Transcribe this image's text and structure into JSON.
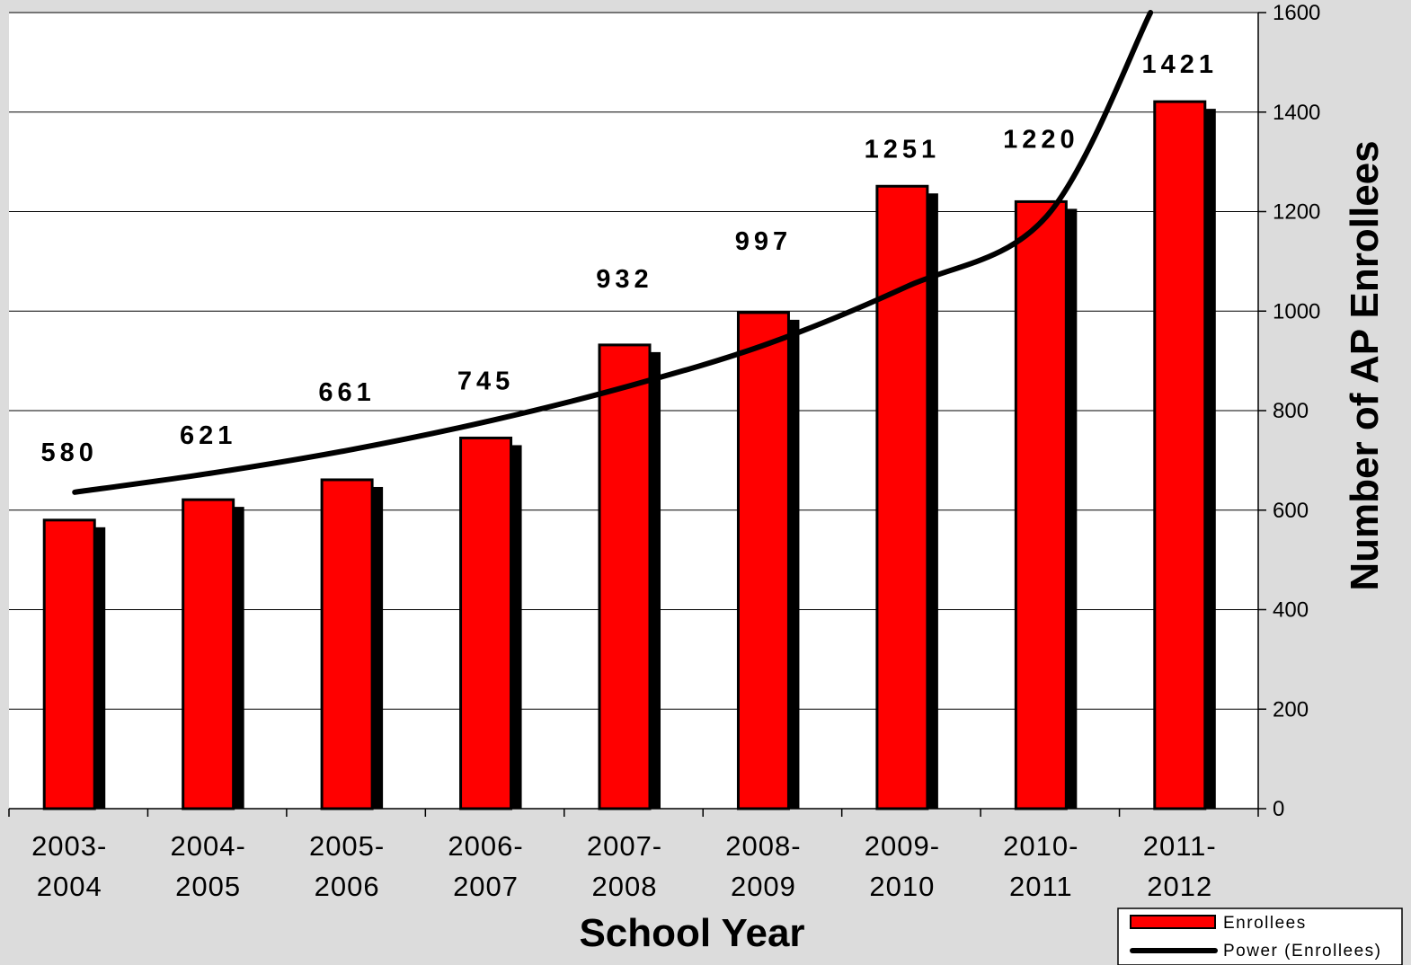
{
  "chart_data": {
    "type": "bar",
    "categories": [
      [
        "2003-",
        "2004"
      ],
      [
        "2004-",
        "2005"
      ],
      [
        "2005-",
        "2006"
      ],
      [
        "2006-",
        "2007"
      ],
      [
        "2007-",
        "2008"
      ],
      [
        "2008-",
        "2009"
      ],
      [
        "2009-",
        "2010"
      ],
      [
        "2010-",
        "2011"
      ],
      [
        "2011-",
        "2012"
      ]
    ],
    "series": [
      {
        "name": "Enrollees",
        "values": [
          580,
          621,
          661,
          745,
          932,
          997,
          1251,
          1220,
          1421
        ],
        "color": "#ff0000"
      }
    ],
    "data_labels": [
      "580",
      "621",
      "661",
      "745",
      "932",
      "997",
      "1251",
      "1220",
      "1421"
    ],
    "trendline": {
      "name": "Power (Enrollees)",
      "type": "power",
      "color": "#000000",
      "x": [
        1,
        2,
        3,
        4,
        5,
        6,
        7,
        8,
        8.75
      ],
      "y": [
        636,
        675,
        722,
        780,
        850,
        935,
        1050,
        1190,
        1600
      ]
    },
    "xlabel": "School Year",
    "ylabel": "Number of AP Enrollees",
    "ylim": [
      0,
      1600
    ],
    "yticks": [
      0,
      200,
      400,
      600,
      800,
      1000,
      1200,
      1400,
      1600
    ],
    "y_axis_side": "right",
    "grid": true,
    "legend_position": "bottom-right"
  }
}
